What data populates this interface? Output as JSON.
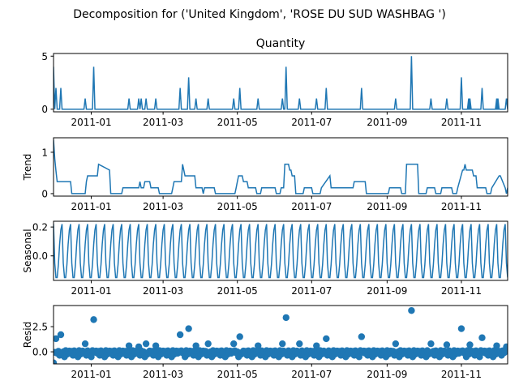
{
  "figure_title": "Decomposition for ('United Kingdom', 'ROSE DU SUD WASHBAG ')",
  "colors": {
    "series": "#1f77b4",
    "axes": "#000000",
    "background": "#ffffff"
  },
  "chart_data": [
    {
      "type": "line",
      "title": "Quantity",
      "ylabel": "",
      "ylim": [
        -0.25,
        5.25
      ],
      "yticks": [
        0,
        5
      ],
      "ytick_labels": [
        "0",
        "5"
      ],
      "xlim": [
        "2010-12-01",
        "2011-12-09"
      ],
      "xtick_labels": [
        "2011-01",
        "2011-03",
        "2011-05",
        "2011-07",
        "2011-09",
        "2011-11"
      ],
      "grid": false,
      "baseline": 0,
      "spikes": [
        {
          "x": "2010-12-01",
          "y": 4
        },
        {
          "x": "2010-12-03",
          "y": 2
        },
        {
          "x": "2010-12-07",
          "y": 2
        },
        {
          "x": "2010-12-27",
          "y": 1
        },
        {
          "x": "2011-01-03",
          "y": 4
        },
        {
          "x": "2011-02-01",
          "y": 1
        },
        {
          "x": "2011-02-09",
          "y": 1
        },
        {
          "x": "2011-02-11",
          "y": 1
        },
        {
          "x": "2011-02-15",
          "y": 1
        },
        {
          "x": "2011-02-23",
          "y": 1
        },
        {
          "x": "2011-03-15",
          "y": 2
        },
        {
          "x": "2011-03-22",
          "y": 3
        },
        {
          "x": "2011-03-28",
          "y": 1
        },
        {
          "x": "2011-04-07",
          "y": 1
        },
        {
          "x": "2011-04-28",
          "y": 1
        },
        {
          "x": "2011-05-03",
          "y": 2
        },
        {
          "x": "2011-05-18",
          "y": 1
        },
        {
          "x": "2011-06-07",
          "y": 1
        },
        {
          "x": "2011-06-10",
          "y": 4
        },
        {
          "x": "2011-06-21",
          "y": 1
        },
        {
          "x": "2011-07-05",
          "y": 1
        },
        {
          "x": "2011-07-13",
          "y": 2
        },
        {
          "x": "2011-08-11",
          "y": 2
        },
        {
          "x": "2011-09-08",
          "y": 1
        },
        {
          "x": "2011-09-21",
          "y": 5
        },
        {
          "x": "2011-10-07",
          "y": 1
        },
        {
          "x": "2011-10-20",
          "y": 1
        },
        {
          "x": "2011-11-01",
          "y": 3
        },
        {
          "x": "2011-11-07",
          "y": 1
        },
        {
          "x": "2011-11-08",
          "y": 1
        },
        {
          "x": "2011-11-18",
          "y": 2
        },
        {
          "x": "2011-11-30",
          "y": 1
        },
        {
          "x": "2011-12-01",
          "y": 1
        },
        {
          "x": "2011-12-08",
          "y": 1
        }
      ]
    },
    {
      "type": "line",
      "title": "",
      "ylabel": "Trend",
      "ylim": [
        -0.06,
        1.35
      ],
      "yticks": [
        0,
        1
      ],
      "ytick_labels": [
        "0",
        "1"
      ],
      "xlim": [
        "2010-12-01",
        "2011-12-09"
      ],
      "xtick_labels": [
        "2011-01",
        "2011-03",
        "2011-05",
        "2011-07",
        "2011-09",
        "2011-11"
      ],
      "grid": false,
      "x": [
        "2010-12-01",
        "2010-12-02",
        "2010-12-03",
        "2010-12-04",
        "2010-12-15",
        "2010-12-16",
        "2010-12-27",
        "2010-12-28",
        "2010-12-29",
        "2011-01-06",
        "2011-01-07",
        "2011-01-16",
        "2011-01-17",
        "2011-01-26",
        "2011-01-27",
        "2011-02-05",
        "2011-02-06",
        "2011-02-09",
        "2011-02-10",
        "2011-02-11",
        "2011-02-13",
        "2011-02-14",
        "2011-02-18",
        "2011-02-19",
        "2011-02-25",
        "2011-02-26",
        "2011-03-08",
        "2011-03-09",
        "2011-03-10",
        "2011-03-16",
        "2011-03-17",
        "2011-03-18",
        "2011-03-19",
        "2011-03-27",
        "2011-03-28",
        "2011-04-02",
        "2011-04-03",
        "2011-04-04",
        "2011-04-12",
        "2011-04-13",
        "2011-04-21",
        "2011-04-22",
        "2011-04-29",
        "2011-04-30",
        "2011-05-01",
        "2011-05-02",
        "2011-05-05",
        "2011-05-06",
        "2011-05-09",
        "2011-05-10",
        "2011-05-16",
        "2011-05-17",
        "2011-05-20",
        "2011-05-21",
        "2011-06-01",
        "2011-06-02",
        "2011-06-05",
        "2011-06-06",
        "2011-06-08",
        "2011-06-09",
        "2011-06-12",
        "2011-06-13",
        "2011-06-14",
        "2011-06-15",
        "2011-06-17",
        "2011-06-18",
        "2011-06-24",
        "2011-06-25",
        "2011-07-01",
        "2011-07-02",
        "2011-07-08",
        "2011-07-09",
        "2011-07-16",
        "2011-07-17",
        "2011-08-04",
        "2011-08-05",
        "2011-08-14",
        "2011-08-15",
        "2011-09-02",
        "2011-09-03",
        "2011-09-12",
        "2011-09-13",
        "2011-09-16",
        "2011-09-17",
        "2011-09-26",
        "2011-09-27",
        "2011-10-03",
        "2011-10-04",
        "2011-10-10",
        "2011-10-11",
        "2011-10-15",
        "2011-10-16",
        "2011-10-24",
        "2011-10-25",
        "2011-10-28",
        "2011-10-29",
        "2011-11-02",
        "2011-11-03",
        "2011-11-04",
        "2011-11-05",
        "2011-11-10",
        "2011-11-11",
        "2011-11-13",
        "2011-11-14",
        "2011-11-21",
        "2011-11-22",
        "2011-11-25",
        "2011-11-26",
        "2011-12-02",
        "2011-12-03",
        "2011-12-07",
        "2011-12-08",
        "2011-12-09"
      ],
      "values": [
        1.3,
        0.85,
        0.55,
        0.29,
        0.29,
        0.0,
        0.0,
        0.29,
        0.43,
        0.43,
        0.71,
        0.57,
        0.0,
        0.0,
        0.14,
        0.14,
        0.14,
        0.14,
        0.29,
        0.14,
        0.14,
        0.29,
        0.29,
        0.14,
        0.14,
        0.0,
        0.0,
        0.14,
        0.29,
        0.29,
        0.71,
        0.57,
        0.43,
        0.43,
        0.14,
        0.14,
        0.0,
        0.14,
        0.14,
        0.0,
        0.0,
        0.0,
        0.0,
        0.14,
        0.29,
        0.43,
        0.43,
        0.29,
        0.29,
        0.14,
        0.14,
        0.0,
        0.0,
        0.14,
        0.14,
        0.0,
        0.0,
        0.14,
        0.14,
        0.71,
        0.71,
        0.57,
        0.57,
        0.43,
        0.43,
        0.0,
        0.0,
        0.14,
        0.14,
        0.0,
        0.0,
        0.14,
        0.43,
        0.14,
        0.14,
        0.29,
        0.29,
        0.0,
        0.0,
        0.14,
        0.14,
        0.0,
        0.0,
        0.71,
        0.71,
        0.0,
        0.0,
        0.14,
        0.14,
        0.0,
        0.0,
        0.14,
        0.14,
        0.0,
        0.0,
        0.14,
        0.57,
        0.57,
        0.71,
        0.57,
        0.57,
        0.43,
        0.43,
        0.14,
        0.14,
        0.0,
        0.0,
        0.14,
        0.43,
        0.43,
        0.14,
        0.0,
        0.14
      ]
    },
    {
      "type": "line",
      "title": "",
      "ylabel": "Seasonal",
      "ylim": [
        -0.17,
        0.24
      ],
      "yticks": [
        0.0,
        0.2
      ],
      "ytick_labels": [
        "0.0",
        "0.2"
      ],
      "xlim": [
        "2010-12-01",
        "2011-12-09"
      ],
      "xtick_labels": [
        "2011-01",
        "2011-03",
        "2011-05",
        "2011-07",
        "2011-09",
        "2011-11"
      ],
      "grid": false,
      "period_days": 7,
      "pattern": [
        0.22,
        -0.05,
        -0.15,
        -0.15,
        -0.06,
        0.08,
        0.18
      ],
      "start": "2010-12-01",
      "end": "2011-12-09"
    },
    {
      "type": "scatter",
      "title": "",
      "ylabel": "Resid",
      "ylim": [
        -1.2,
        4.6
      ],
      "yticks": [
        0.0,
        2.5
      ],
      "ytick_labels": [
        "0.0",
        "2.5"
      ],
      "xlim": [
        "2010-12-01",
        "2011-12-09"
      ],
      "xtick_labels": [
        "2011-01",
        "2011-03",
        "2011-05",
        "2011-07",
        "2011-09",
        "2011-11"
      ],
      "grid": false,
      "baseline": 0,
      "outliers": [
        {
          "x": "2010-12-01",
          "y": -1.1
        },
        {
          "x": "2010-12-03",
          "y": 1.3
        },
        {
          "x": "2010-12-07",
          "y": 1.7
        },
        {
          "x": "2010-12-27",
          "y": 0.8
        },
        {
          "x": "2011-01-03",
          "y": 3.2
        },
        {
          "x": "2011-02-01",
          "y": 0.6
        },
        {
          "x": "2011-02-09",
          "y": 0.5
        },
        {
          "x": "2011-02-15",
          "y": 0.8
        },
        {
          "x": "2011-02-23",
          "y": 0.6
        },
        {
          "x": "2011-03-15",
          "y": 1.7
        },
        {
          "x": "2011-03-22",
          "y": 2.3
        },
        {
          "x": "2011-03-28",
          "y": 0.6
        },
        {
          "x": "2011-04-07",
          "y": 0.8
        },
        {
          "x": "2011-04-28",
          "y": 0.8
        },
        {
          "x": "2011-05-03",
          "y": 1.5
        },
        {
          "x": "2011-05-18",
          "y": 0.6
        },
        {
          "x": "2011-06-07",
          "y": 0.8
        },
        {
          "x": "2011-06-10",
          "y": 3.4
        },
        {
          "x": "2011-06-21",
          "y": 0.8
        },
        {
          "x": "2011-07-05",
          "y": 0.6
        },
        {
          "x": "2011-07-13",
          "y": 1.3
        },
        {
          "x": "2011-08-11",
          "y": 1.5
        },
        {
          "x": "2011-09-08",
          "y": 0.8
        },
        {
          "x": "2011-09-21",
          "y": 4.1
        },
        {
          "x": "2011-10-07",
          "y": 0.8
        },
        {
          "x": "2011-10-20",
          "y": 0.7
        },
        {
          "x": "2011-11-01",
          "y": 2.3
        },
        {
          "x": "2011-11-08",
          "y": 0.7
        },
        {
          "x": "2011-11-18",
          "y": 1.4
        },
        {
          "x": "2011-11-30",
          "y": 0.6
        },
        {
          "x": "2011-12-08",
          "y": 0.5
        }
      ]
    }
  ]
}
